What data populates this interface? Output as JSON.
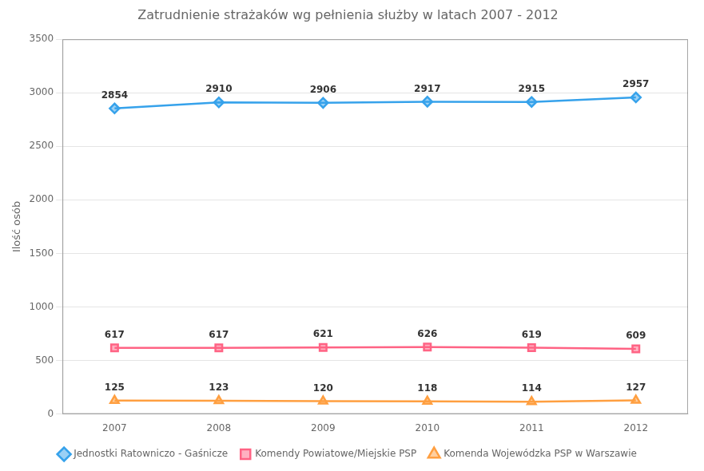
{
  "chart_data": {
    "type": "line",
    "title": "Zatrudnienie strażaków wg pełnienia służby w latach 2007 - 2012",
    "ylabel": "Ilość osób",
    "x": [
      2007,
      2008,
      2009,
      2010,
      2011,
      2012
    ],
    "series": [
      {
        "name": "Jednostki Ratowniczo - Gaśnicze",
        "values": [
          2854,
          2910,
          2906,
          2917,
          2915,
          2957
        ],
        "marker": "diamond"
      },
      {
        "name": "Komendy Powiatowe/Miejskie PSP",
        "values": [
          617,
          617,
          621,
          626,
          619,
          609
        ],
        "marker": "square"
      },
      {
        "name": "Komenda Wojewódzka PSP w Warszawie",
        "values": [
          125,
          123,
          120,
          118,
          114,
          127
        ],
        "marker": "triangle"
      }
    ],
    "xlim": [
      2006.5,
      2012.5
    ],
    "xticks": [
      2007,
      2008,
      2009,
      2010,
      2011,
      2012
    ],
    "ylim": [
      0,
      3500
    ],
    "yticks": [
      0,
      500,
      1000,
      1500,
      2000,
      2500,
      3000,
      3500
    ],
    "grid": "y",
    "legend": "bottom",
    "data_labels": true
  }
}
